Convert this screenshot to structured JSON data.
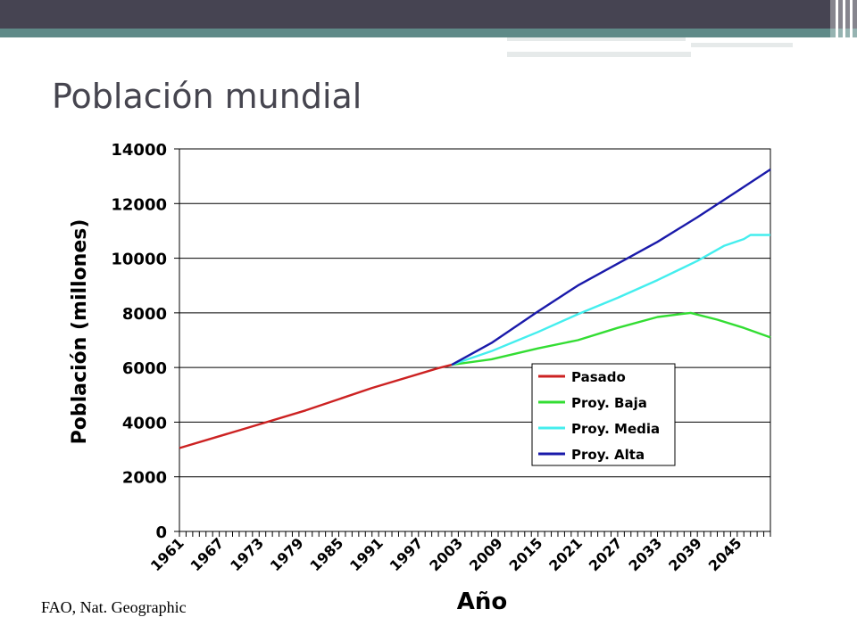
{
  "slide": {
    "title": "Población mundial",
    "source": "FAO, Nat. Geographic"
  },
  "chart_data": {
    "type": "line",
    "xlabel": "Año",
    "ylabel": "Población (millones)",
    "ylim": [
      0,
      14000
    ],
    "xlim": [
      1961,
      2050
    ],
    "yticks": [
      0,
      2000,
      4000,
      6000,
      8000,
      10000,
      12000,
      14000
    ],
    "xticks": [
      "1961",
      "1967",
      "1973",
      "1979",
      "1985",
      "1991",
      "1997",
      "2003",
      "2009",
      "2015",
      "2021",
      "2027",
      "2033",
      "2039",
      "2045"
    ],
    "legend_position": "inside-right",
    "series": [
      {
        "name": "Pasado",
        "color": "#cc2222",
        "x": [
          1961,
          1970,
          1980,
          1990,
          2000,
          2002
        ],
        "y": [
          3050,
          3700,
          4430,
          5250,
          5980,
          6100
        ]
      },
      {
        "name": "Proy. Baja",
        "color": "#33dd33",
        "x": [
          2002,
          2008,
          2015,
          2021,
          2027,
          2033,
          2038,
          2042,
          2046,
          2050
        ],
        "y": [
          6100,
          6300,
          6700,
          7000,
          7450,
          7850,
          8000,
          7750,
          7450,
          7100
        ]
      },
      {
        "name": "Proy. Media",
        "color": "#44eeee",
        "x": [
          2002,
          2008,
          2015,
          2021,
          2027,
          2033,
          2039,
          2043,
          2046,
          2047,
          2050
        ],
        "y": [
          6100,
          6600,
          7300,
          7950,
          8550,
          9200,
          9900,
          10450,
          10700,
          10850,
          10850
        ]
      },
      {
        "name": "Proy. Alta",
        "color": "#1a1aaa",
        "x": [
          2002,
          2008,
          2015,
          2021,
          2027,
          2033,
          2039,
          2045,
          2050
        ],
        "y": [
          6100,
          6900,
          8050,
          9000,
          9800,
          10600,
          11500,
          12450,
          13250
        ]
      }
    ]
  }
}
